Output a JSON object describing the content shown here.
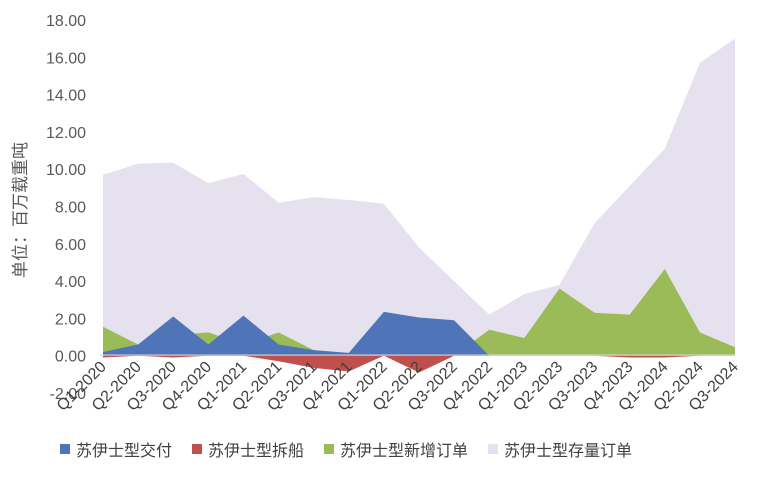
{
  "chart_data": {
    "type": "area",
    "title": "",
    "xlabel": "",
    "ylabel": "单位：百万载重吨",
    "ylim": [
      -2,
      18
    ],
    "y_ticks": [
      "-2.00",
      "0.00",
      "2.00",
      "4.00",
      "6.00",
      "8.00",
      "10.00",
      "12.00",
      "14.00",
      "16.00",
      "18.00"
    ],
    "grid": false,
    "legend_position": "bottom",
    "categories": [
      "Q1-2020",
      "Q2-2020",
      "Q3-2020",
      "Q4-2020",
      "Q1-2021",
      "Q2-2021",
      "Q3-2021",
      "Q4-2021",
      "Q1-2022",
      "Q2-2022",
      "Q3-2022",
      "Q4-2022",
      "Q1-2023",
      "Q2-2023",
      "Q3-2023",
      "Q4-2023",
      "Q1-2024",
      "Q2-2024",
      "Q3-2024"
    ],
    "series": [
      {
        "name": "苏伊士型交付",
        "color": "#4f74b8",
        "values": [
          0.2,
          0.6,
          2.1,
          0.6,
          2.15,
          0.6,
          0.3,
          0.15,
          2.35,
          2.05,
          1.9,
          0.0,
          0.0,
          0.0,
          0.0,
          0.0,
          0.0,
          0.0,
          0.0
        ]
      },
      {
        "name": "苏伊士型拆船",
        "color": "#c0504d",
        "values": [
          -0.1,
          0.0,
          -0.1,
          0.0,
          0.0,
          -0.3,
          -0.65,
          -0.85,
          0.0,
          -0.9,
          0.0,
          0.0,
          0.0,
          0.0,
          0.0,
          -0.1,
          -0.1,
          0.0,
          0.0
        ]
      },
      {
        "name": "苏伊士型新增订单",
        "color": "#9bbb59",
        "values": [
          1.55,
          0.6,
          1.1,
          1.25,
          0.6,
          1.25,
          0.3,
          0.0,
          0.0,
          0.3,
          0.0,
          1.4,
          0.95,
          3.6,
          2.3,
          2.2,
          4.65,
          1.25,
          0.45
        ]
      },
      {
        "name": "苏伊士型存量订单",
        "color": "#e6e1ee",
        "values": [
          9.7,
          10.3,
          10.35,
          9.25,
          9.75,
          8.2,
          8.5,
          8.35,
          8.15,
          5.8,
          4.0,
          2.2,
          3.3,
          3.8,
          7.1,
          9.1,
          11.1,
          15.7,
          17.0
        ]
      }
    ]
  }
}
